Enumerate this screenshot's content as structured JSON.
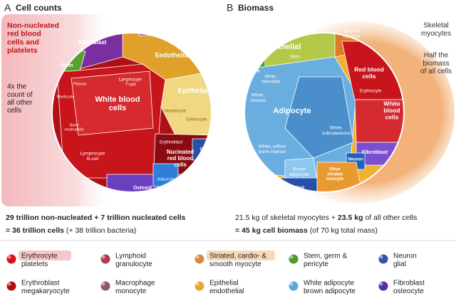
{
  "panel_a": {
    "letter": "A",
    "title": "Cell counts",
    "note_1": [
      "Non-nucleated",
      "red blood",
      "cells and",
      "platelets"
    ],
    "note_2": [
      "4x the",
      "count of",
      "all other",
      "cells"
    ],
    "labels": [
      [
        "Fibroblast"
      ],
      [
        "Pericyte"
      ],
      [
        "Capillary"
      ],
      [
        "Endothelial"
      ],
      [
        "Stem"
      ],
      [
        "Lymphocyte",
        "T-cell"
      ],
      [
        "White blood",
        "cells"
      ],
      [
        "Epithelial"
      ],
      [
        "Hepatocyte"
      ],
      [
        "Enterocyte"
      ],
      [
        "Lymphocyte",
        "B-cell"
      ],
      [
        "Erythroblast"
      ],
      [
        "Nucleated",
        "red blood",
        "cells"
      ],
      [
        "Glial"
      ],
      [
        "Osteoid"
      ],
      [
        "Adipocyte"
      ],
      [
        "Myelocyte"
      ],
      [
        "Plasma"
      ],
      [
        "Band",
        "neutrophils"
      ]
    ]
  },
  "panel_b": {
    "letter": "B",
    "title": "Biomass",
    "note_1": [
      "Skeletal",
      "myocytes"
    ],
    "note_2": [
      "Half the",
      "biomass",
      "of all cells"
    ],
    "labels": [
      [
        "Epithelial"
      ],
      [
        "Endo-",
        "thelial"
      ],
      [
        "Smooth",
        "myocyte"
      ],
      [
        "Pericyte"
      ],
      [
        "Stem"
      ],
      [
        "White,",
        "interstitial"
      ],
      [
        "White,",
        "visceral"
      ],
      [
        "Adipocyte"
      ],
      [
        "White,",
        "subcutaneous"
      ],
      [
        "White, yellow",
        "bone-marrow"
      ],
      [
        "Brown",
        "adipocyte"
      ],
      [
        "Red blood",
        "cells"
      ],
      [
        "Erythrocyte"
      ],
      [
        "White",
        "blood",
        "cells"
      ],
      [
        "Fibroblast"
      ],
      [
        "Neuron"
      ],
      [
        "Other",
        "striated",
        "myocyte"
      ],
      [
        "Glial"
      ]
    ]
  },
  "summary_a": {
    "line_1": [
      "29 trillion non-nucleated",
      "+ 7 trillion nucleated cells"
    ],
    "line_2": [
      "= 36 trillion cells",
      "(+ 38 trillion bacteria)"
    ]
  },
  "summary_b": {
    "line_1": [
      "21.5 kg of skeletal myocytes +",
      "23.5 kg",
      "of all other cells"
    ],
    "line_2": [
      "= 45 kg cell biomass",
      "(of 70 kg total mass)"
    ]
  },
  "legend": [
    [
      "Erythrocyte",
      "platelets"
    ],
    [
      "Lymphoid",
      "granulocyte"
    ],
    [
      "Striated, cardio- &",
      "smooth myocyte"
    ],
    [
      "Stem, germ &",
      "pericyte"
    ],
    [
      "Neuron",
      "glial"
    ],
    [
      "Erythroblast",
      "megakaryocyte"
    ],
    [
      "Macrophage",
      "monocyte"
    ],
    [
      "Epithelial",
      "endothelial"
    ],
    [
      "White adipocyte",
      "brown adipocyte"
    ],
    [
      "Fibroblast",
      "osteocyte"
    ]
  ]
}
